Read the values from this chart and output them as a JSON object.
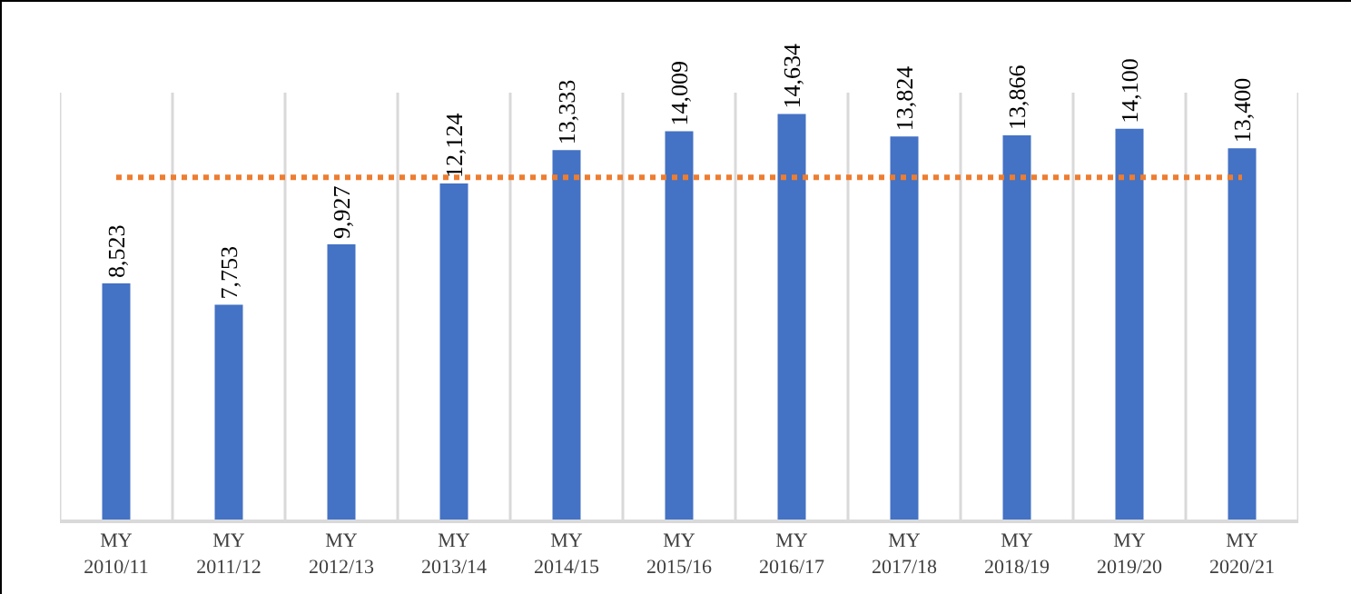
{
  "chart_data": {
    "type": "bar",
    "categories": [
      "MY 2010/11",
      "MY 2011/12",
      "MY 2012/13",
      "MY 2013/14",
      "MY 2014/15",
      "MY 2015/16",
      "MY 2016/17",
      "MY 2017/18",
      "MY 2018/19",
      "MY 2019/20",
      "MY 2020/21"
    ],
    "values": [
      8523,
      7753,
      9927,
      12124,
      13333,
      14009,
      14634,
      13824,
      13866,
      14100,
      13400
    ],
    "color": "#4472c4",
    "value_labels": [
      "8,523",
      "7,753",
      "9,927",
      "12,124",
      "13,333",
      "14,009",
      "14,634",
      "13,824",
      "13,866",
      "14,100",
      "13,400"
    ],
    "ref_lines": [
      {
        "axis": "y",
        "value": 12350,
        "color": "#ed7d31",
        "line_style": "dotted"
      }
    ],
    "grid": "x",
    "tick_labels": "x"
  }
}
